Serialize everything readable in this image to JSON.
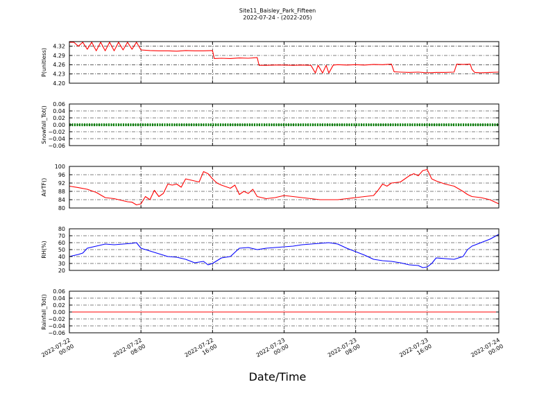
{
  "figure": {
    "title": "Site11_Baisley_Park_Fifteen",
    "subtitle": "2022-07-24 - (2022-205)",
    "xlabel": "Date/Time"
  },
  "chart_data": [
    {
      "type": "line",
      "ylabel": "P(unitless)",
      "color": "#ff0000",
      "ylim": [
        4.2,
        4.335
      ],
      "yticks": [
        "4.32",
        "4.29",
        "4.26",
        "4.23",
        "4.20"
      ],
      "ytick_values": [
        4.32,
        4.29,
        4.26,
        4.23,
        4.2
      ],
      "grid": true,
      "x_hours": [
        0,
        0.5,
        1,
        1.5,
        2,
        2.5,
        3,
        3.5,
        4,
        4.5,
        5,
        5.5,
        6,
        6.5,
        7,
        7.5,
        8,
        9,
        10,
        11,
        12,
        13,
        14,
        15,
        16,
        16.2,
        17,
        18,
        19,
        20,
        21,
        21.2,
        22,
        23,
        24,
        25,
        26,
        27,
        27.5,
        27.8,
        28.3,
        28.7,
        29,
        29.5,
        30,
        31,
        32,
        33,
        34,
        35,
        36,
        36.3,
        37,
        38,
        39,
        40,
        41,
        42,
        43,
        43.3,
        44,
        44.8,
        45,
        45.3,
        46,
        47,
        48
      ],
      "values": [
        4.333,
        4.333,
        4.32,
        4.333,
        4.31,
        4.333,
        4.305,
        4.333,
        4.305,
        4.333,
        4.305,
        4.333,
        4.308,
        4.333,
        4.31,
        4.333,
        4.308,
        4.306,
        4.305,
        4.305,
        4.304,
        4.306,
        4.305,
        4.305,
        4.306,
        4.28,
        4.281,
        4.28,
        4.282,
        4.281,
        4.283,
        4.258,
        4.258,
        4.259,
        4.259,
        4.258,
        4.259,
        4.258,
        4.233,
        4.258,
        4.233,
        4.258,
        4.233,
        4.259,
        4.26,
        4.259,
        4.26,
        4.259,
        4.261,
        4.26,
        4.262,
        4.237,
        4.236,
        4.235,
        4.236,
        4.234,
        4.235,
        4.235,
        4.236,
        4.262,
        4.261,
        4.262,
        4.245,
        4.235,
        4.234,
        4.235,
        4.236
      ]
    },
    {
      "type": "line",
      "ylabel": "Snowfall_Tot()",
      "color": "#008000",
      "marker": "dot",
      "ylim": [
        -0.06,
        0.06
      ],
      "yticks": [
        "0.06",
        "0.04",
        "0.02",
        "0.00",
        "−0.02",
        "−0.04",
        "−0.06"
      ],
      "ytick_values": [
        0.06,
        0.04,
        0.02,
        0.0,
        -0.02,
        -0.04,
        -0.06
      ],
      "grid": true,
      "x_hours": [
        0,
        48
      ],
      "values": [
        0,
        0
      ]
    },
    {
      "type": "line",
      "ylabel": "AirTF()",
      "color": "#ff0000",
      "ylim": [
        80,
        100
      ],
      "yticks": [
        "100",
        "96",
        "92",
        "88",
        "84",
        "80"
      ],
      "ytick_values": [
        100,
        96,
        92,
        88,
        84,
        80
      ],
      "grid": true,
      "x_hours": [
        0,
        1,
        2,
        3,
        4,
        5,
        6,
        6.5,
        7,
        7.5,
        8,
        8.5,
        9,
        9.5,
        10,
        10.5,
        11,
        11.5,
        12,
        12.5,
        13,
        14,
        14.5,
        15,
        15.5,
        16,
        16.5,
        17,
        18,
        18.5,
        19,
        19.5,
        20,
        20.5,
        21,
        21.5,
        22,
        23,
        24,
        25,
        26,
        27,
        28,
        29,
        30,
        31,
        32,
        33,
        34,
        34.5,
        35,
        35.5,
        36,
        37,
        37.5,
        38,
        38.5,
        39,
        39.5,
        40,
        40.5,
        41,
        42,
        43,
        44,
        44.5,
        45,
        46,
        47,
        48
      ],
      "values": [
        90.5,
        89.8,
        89.0,
        87.5,
        85.0,
        84.5,
        83.5,
        83.0,
        82.8,
        81.5,
        82.0,
        85.5,
        84.0,
        88.5,
        85.5,
        87.0,
        91.5,
        91.0,
        91.5,
        90.0,
        94.0,
        93.0,
        92.5,
        97.5,
        96.5,
        94.0,
        92.0,
        91.0,
        89.5,
        91.0,
        86.5,
        88.0,
        87.0,
        89.0,
        85.5,
        85.0,
        84.5,
        85.0,
        86.0,
        85.5,
        85.0,
        84.5,
        84.0,
        84.0,
        84.0,
        84.5,
        85.0,
        85.5,
        86.0,
        88.5,
        91.5,
        90.5,
        92.0,
        92.5,
        94.0,
        95.5,
        96.5,
        95.5,
        98.0,
        98.5,
        94.0,
        93.0,
        91.5,
        90.5,
        88.0,
        86.5,
        85.5,
        85.0,
        84.0,
        82.0
      ]
    },
    {
      "type": "line",
      "ylabel": "RH(%)",
      "color": "#0000ff",
      "ylim": [
        20,
        80
      ],
      "yticks": [
        "80",
        "70",
        "60",
        "50",
        "40",
        "30",
        "20"
      ],
      "ytick_values": [
        80,
        70,
        60,
        50,
        40,
        30,
        20
      ],
      "grid": true,
      "x_hours": [
        0,
        1,
        1.5,
        2,
        3,
        4,
        5,
        6,
        7,
        7.5,
        8,
        9,
        10,
        11,
        12,
        13,
        14,
        15,
        15.5,
        16,
        17,
        18,
        19,
        20,
        21,
        22,
        23,
        24,
        25,
        26,
        27,
        28,
        29,
        30,
        31,
        32,
        33,
        34,
        35,
        36,
        37,
        38,
        39,
        39.5,
        40,
        40.5,
        41,
        42,
        43,
        44,
        44.5,
        45,
        46,
        47,
        48
      ],
      "values": [
        40,
        43,
        45,
        52,
        55,
        58,
        57,
        58,
        59,
        60,
        52,
        48,
        44,
        40,
        39,
        36,
        31,
        33,
        28,
        30,
        38,
        40,
        52,
        53,
        50,
        52,
        53,
        54,
        55,
        57,
        58,
        59,
        60,
        58,
        52,
        47,
        42,
        36,
        34,
        33,
        31,
        28,
        27,
        24,
        25,
        30,
        38,
        37,
        36,
        40,
        50,
        55,
        60,
        65,
        72
      ]
    },
    {
      "type": "line",
      "ylabel": "Rainfall_Tot()",
      "color": "#ff0000",
      "ylim": [
        -0.06,
        0.06
      ],
      "yticks": [
        "0.06",
        "0.04",
        "0.02",
        "0.00",
        "−0.02",
        "−0.04",
        "−0.06"
      ],
      "ytick_values": [
        0.06,
        0.04,
        0.02,
        0.0,
        -0.02,
        -0.04,
        -0.06
      ],
      "grid": true,
      "x_hours": [
        0,
        48
      ],
      "values": [
        0,
        0
      ]
    }
  ],
  "x_axis": {
    "range_hours": [
      0,
      48
    ],
    "ticks": [
      {
        "hour": 0,
        "line1": "2022-07-22",
        "line2": "00:00"
      },
      {
        "hour": 8,
        "line1": "2022-07-22",
        "line2": "08:00"
      },
      {
        "hour": 16,
        "line1": "2022-07-22",
        "line2": "16:00"
      },
      {
        "hour": 24,
        "line1": "2022-07-23",
        "line2": "00:00"
      },
      {
        "hour": 32,
        "line1": "2022-07-23",
        "line2": "08:00"
      },
      {
        "hour": 40,
        "line1": "2022-07-23",
        "line2": "16:00"
      },
      {
        "hour": 48,
        "line1": "2022-07-24",
        "line2": "00:00"
      }
    ]
  }
}
